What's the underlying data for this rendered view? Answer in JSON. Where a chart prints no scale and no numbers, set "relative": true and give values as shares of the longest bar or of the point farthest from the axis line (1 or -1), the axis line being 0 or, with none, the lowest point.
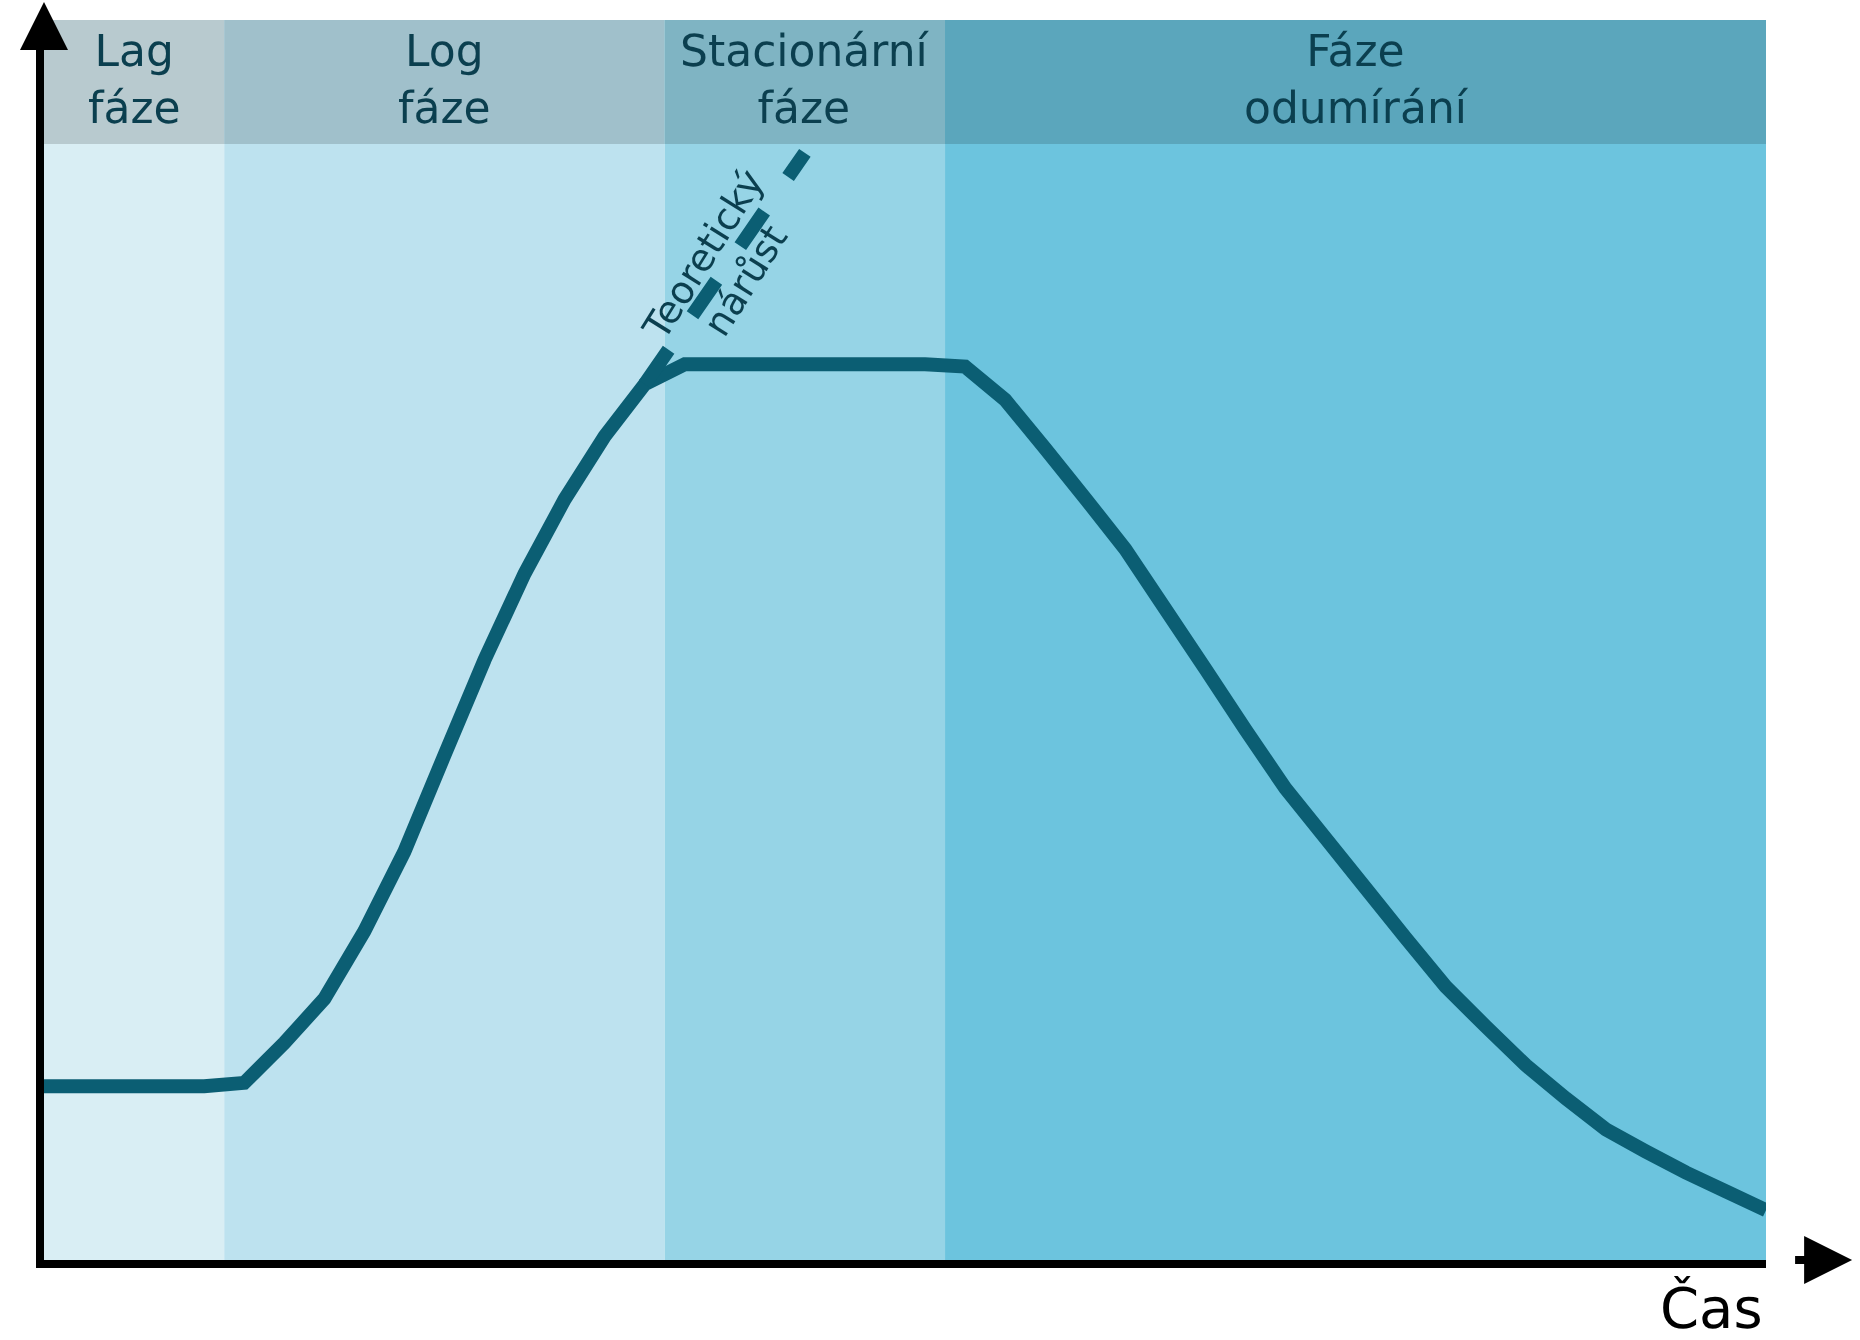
{
  "chart_data": {
    "type": "line",
    "relative": true,
    "xlabel": "Čas",
    "categories": [
      null,
      null,
      null,
      null,
      null,
      null,
      null,
      null,
      null,
      null,
      null,
      null,
      null,
      null,
      null,
      null,
      null,
      null,
      null,
      null,
      null,
      null,
      null,
      null,
      null,
      null,
      null,
      null,
      null,
      null,
      null,
      null,
      null,
      null,
      null,
      null,
      null,
      null,
      null,
      null,
      null,
      null,
      null,
      null
    ],
    "series": [
      {
        "color": "#0b5e73",
        "line_style": "solid",
        "values": [
          0.157,
          0.157,
          0.157,
          0.157,
          0.157,
          0.16,
          0.196,
          0.236,
          0.297,
          0.369,
          0.456,
          0.542,
          0.62,
          0.687,
          0.744,
          0.791,
          0.809,
          0.809,
          0.809,
          0.809,
          0.809,
          0.809,
          0.809,
          0.807,
          0.777,
          0.733,
          0.688,
          0.642,
          0.588,
          0.534,
          0.479,
          0.426,
          0.381,
          0.336,
          0.291,
          0.247,
          0.211,
          0.176,
          0.146,
          0.118,
          0.098,
          0.079,
          0.062,
          0.045
        ]
      },
      {
        "color": "#0b5e73",
        "line_style": "dashed",
        "values": [
          null,
          null,
          null,
          null,
          null,
          null,
          null,
          null,
          null,
          null,
          null,
          null,
          null,
          null,
          null,
          0.791,
          null,
          null,
          null,
          1.0,
          null,
          null,
          null,
          null,
          null,
          null,
          null,
          null,
          null,
          null,
          null,
          null,
          null,
          null,
          null,
          null,
          null,
          null,
          null,
          null,
          null,
          null,
          null,
          null
        ]
      }
    ],
    "annotations": [
      "Lag\nfáze",
      "Log\nfáze",
      "Stacionární\nfáze",
      "Fáze\nodumírání",
      "Teoretický\nnárůst"
    ]
  }
}
